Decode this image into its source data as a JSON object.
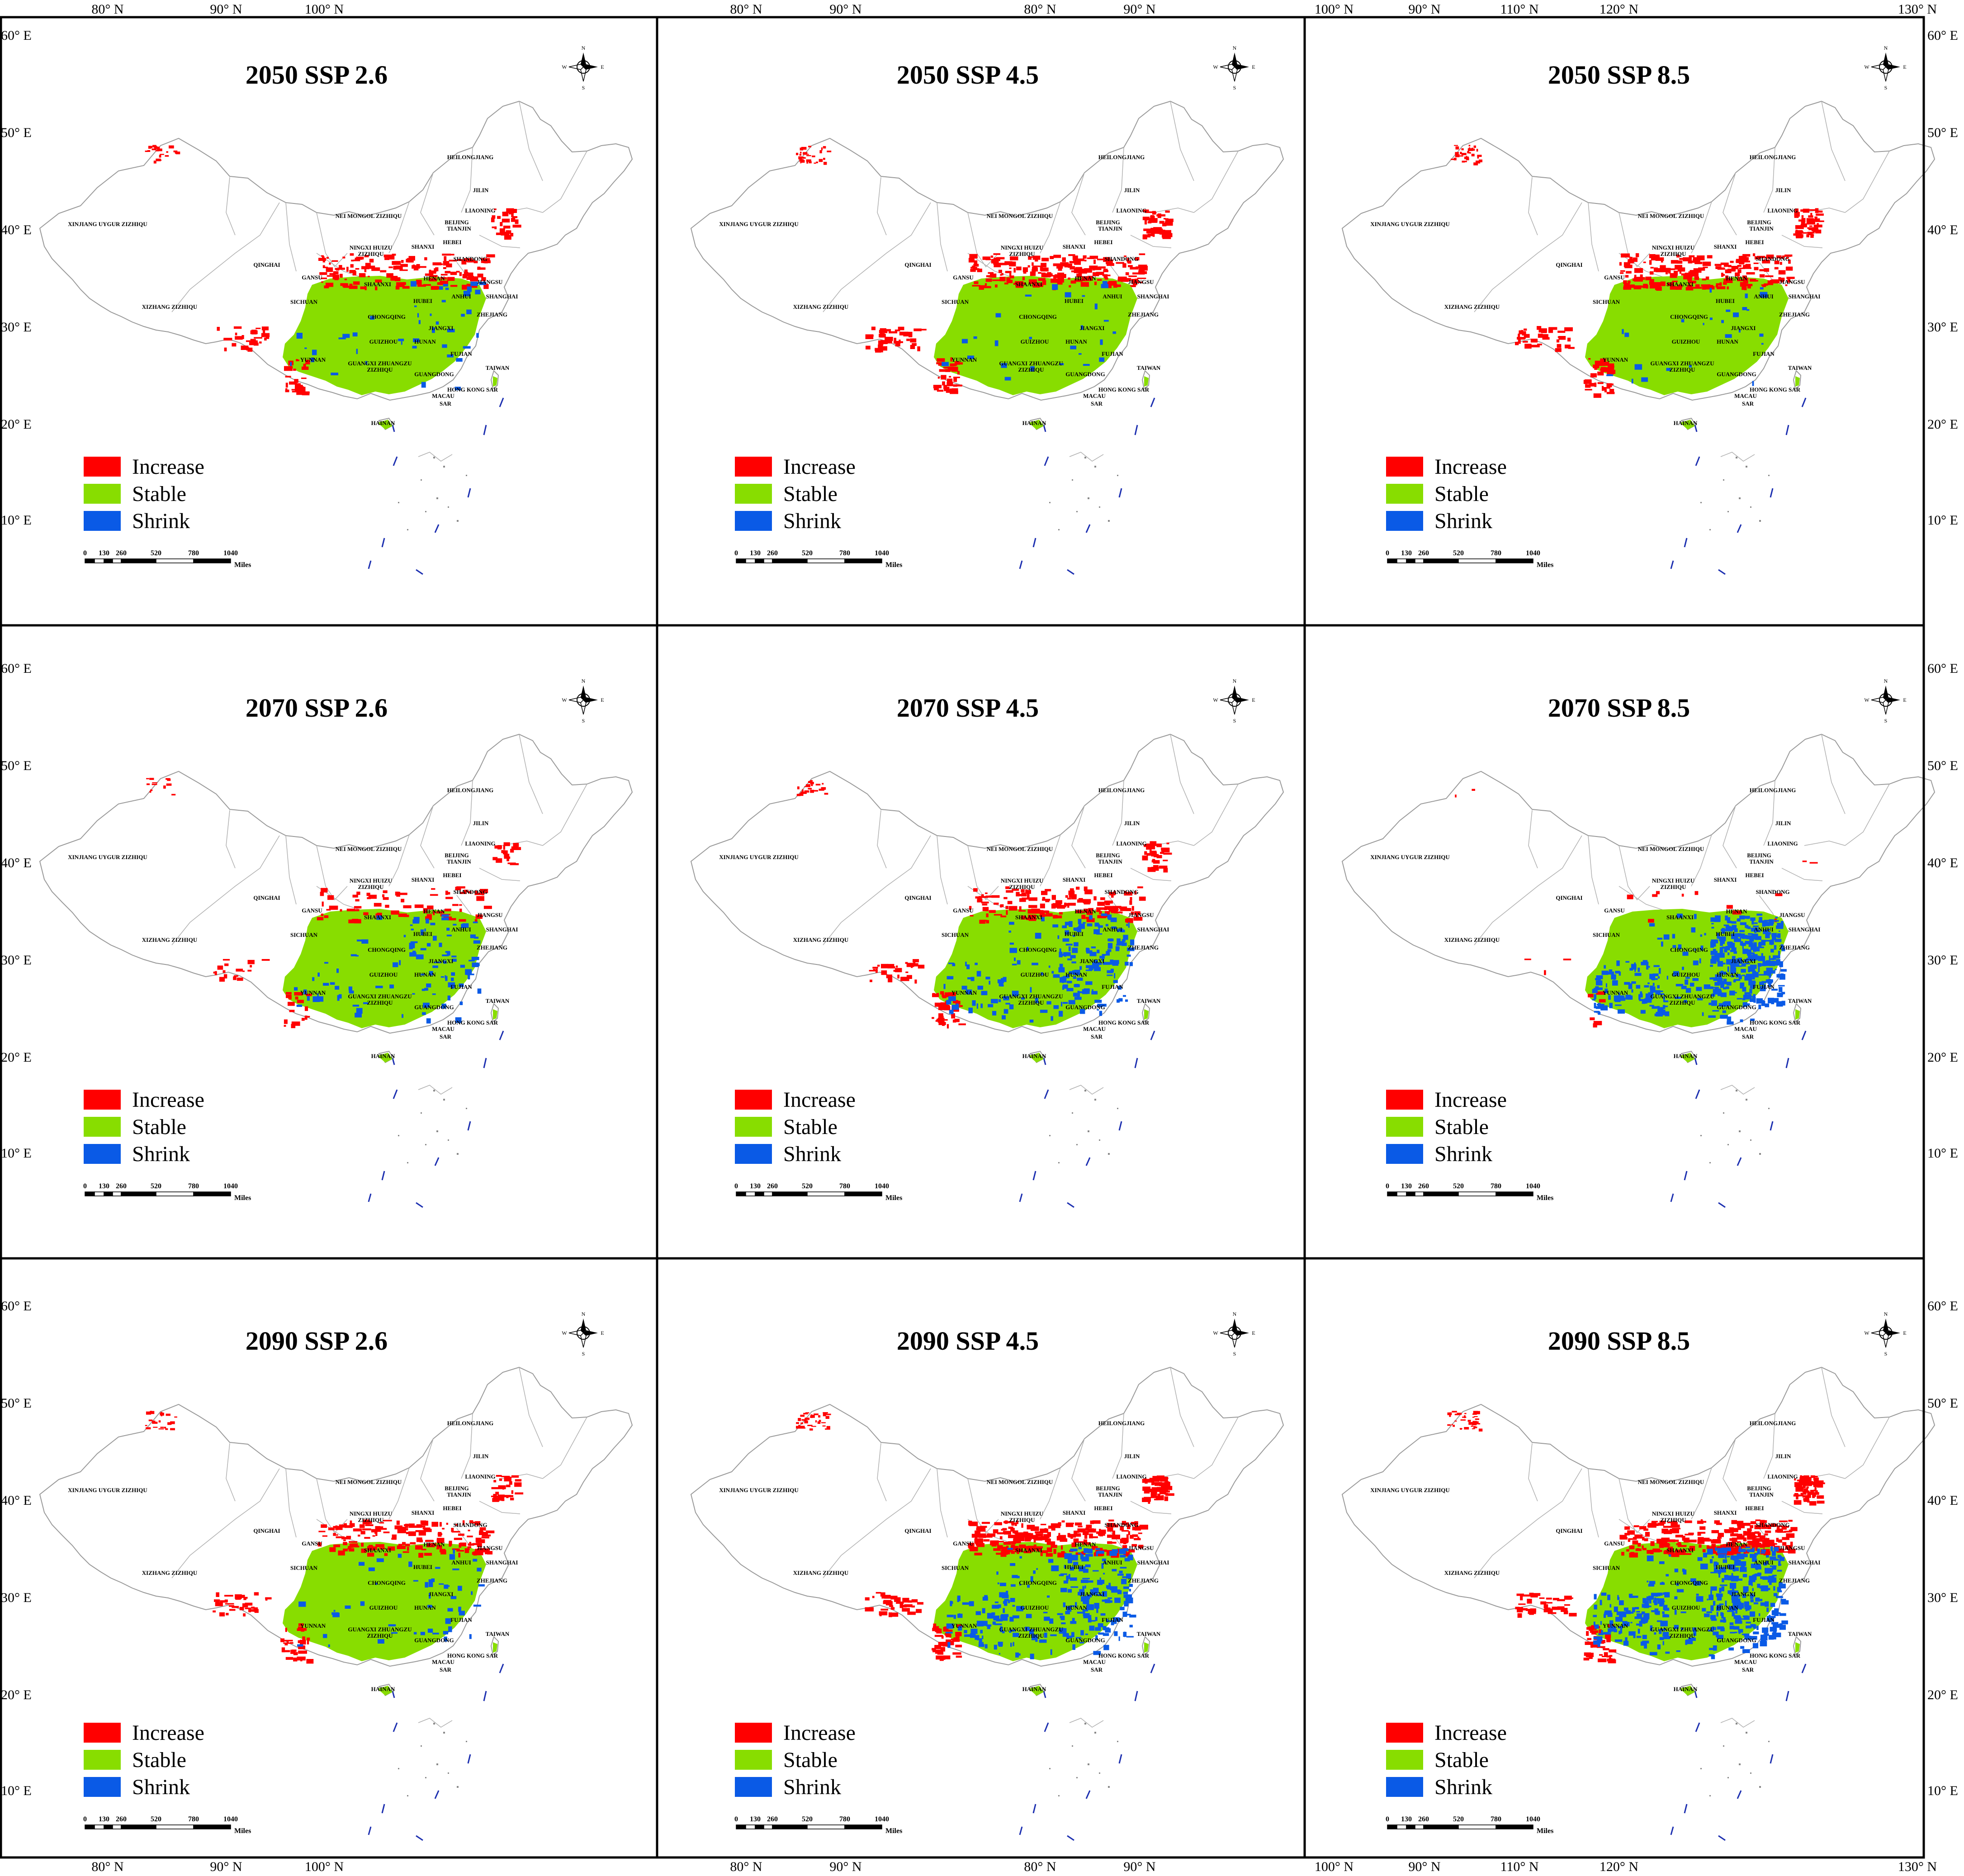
{
  "axes": {
    "x_ticks": [
      "80° N",
      "90° N",
      "100° N",
      "110° N",
      "120° N",
      "130° N"
    ],
    "y_ticks": [
      "60° E",
      "50° E",
      "40° E",
      "30° E",
      "20° E",
      "10° E"
    ]
  },
  "legend": {
    "items": [
      {
        "label": "Increase",
        "color": "#ff0000"
      },
      {
        "label": "Stable",
        "color": "#88dd00"
      },
      {
        "label": "Shrink",
        "color": "#0a5ae6"
      }
    ]
  },
  "scale_bar": {
    "ticks": [
      "0",
      "130",
      "260",
      "520",
      "780",
      "1040"
    ],
    "unit": "Miles"
  },
  "compass": {
    "n": "N",
    "s": "S",
    "e": "E",
    "w": "W"
  },
  "provinces": [
    "XINJIANG UYGUR ZIZHIQU",
    "XIZHANG ZIZHIQU",
    "QINGHAI",
    "GANSU",
    "NEI MONGOL ZIZHIQU",
    "NINGXI HUIZU",
    "ZIZHIQU",
    "HEILONGJIANG",
    "JILIN",
    "LIAONING",
    "BEIJING",
    "TIANJIN",
    "HEBEI",
    "SHANXI",
    "SHANDONG",
    "SHAANXI",
    "HENAN",
    "JIANGSU",
    "SHANGHAI",
    "ANHUI",
    "HUBEI",
    "SICHUAN",
    "CHONGQING",
    "ZHEJIANG",
    "JIANGXI",
    "HUNAN",
    "GUIZHOU",
    "YUNNAN",
    "FUJIAN",
    "GUANGXI ZHUANGZU",
    "ZIZHIQU",
    "GUANGDONG",
    "TAIWAN",
    "HONG KONG SAR",
    "MACAU",
    "SAR",
    "HAINAN"
  ],
  "panels": [
    {
      "title": "2050 SSP 2.6",
      "increase_level": 0.55,
      "shrink_level": 0.08
    },
    {
      "title": "2050 SSP 4.5",
      "increase_level": 0.75,
      "shrink_level": 0.05
    },
    {
      "title": "2050 SSP 8.5",
      "increase_level": 0.8,
      "shrink_level": 0.05
    },
    {
      "title": "2070 SSP 2.6",
      "increase_level": 0.3,
      "shrink_level": 0.2
    },
    {
      "title": "2070 SSP 4.5",
      "increase_level": 0.6,
      "shrink_level": 0.4
    },
    {
      "title": "2070 SSP 8.5",
      "increase_level": 0.05,
      "shrink_level": 0.85
    },
    {
      "title": "2090 SSP 2.6",
      "increase_level": 0.6,
      "shrink_level": 0.1
    },
    {
      "title": "2090 SSP 4.5",
      "increase_level": 0.85,
      "shrink_level": 0.5
    },
    {
      "title": "2090 SSP 8.5",
      "increase_level": 0.9,
      "shrink_level": 0.8
    }
  ]
}
